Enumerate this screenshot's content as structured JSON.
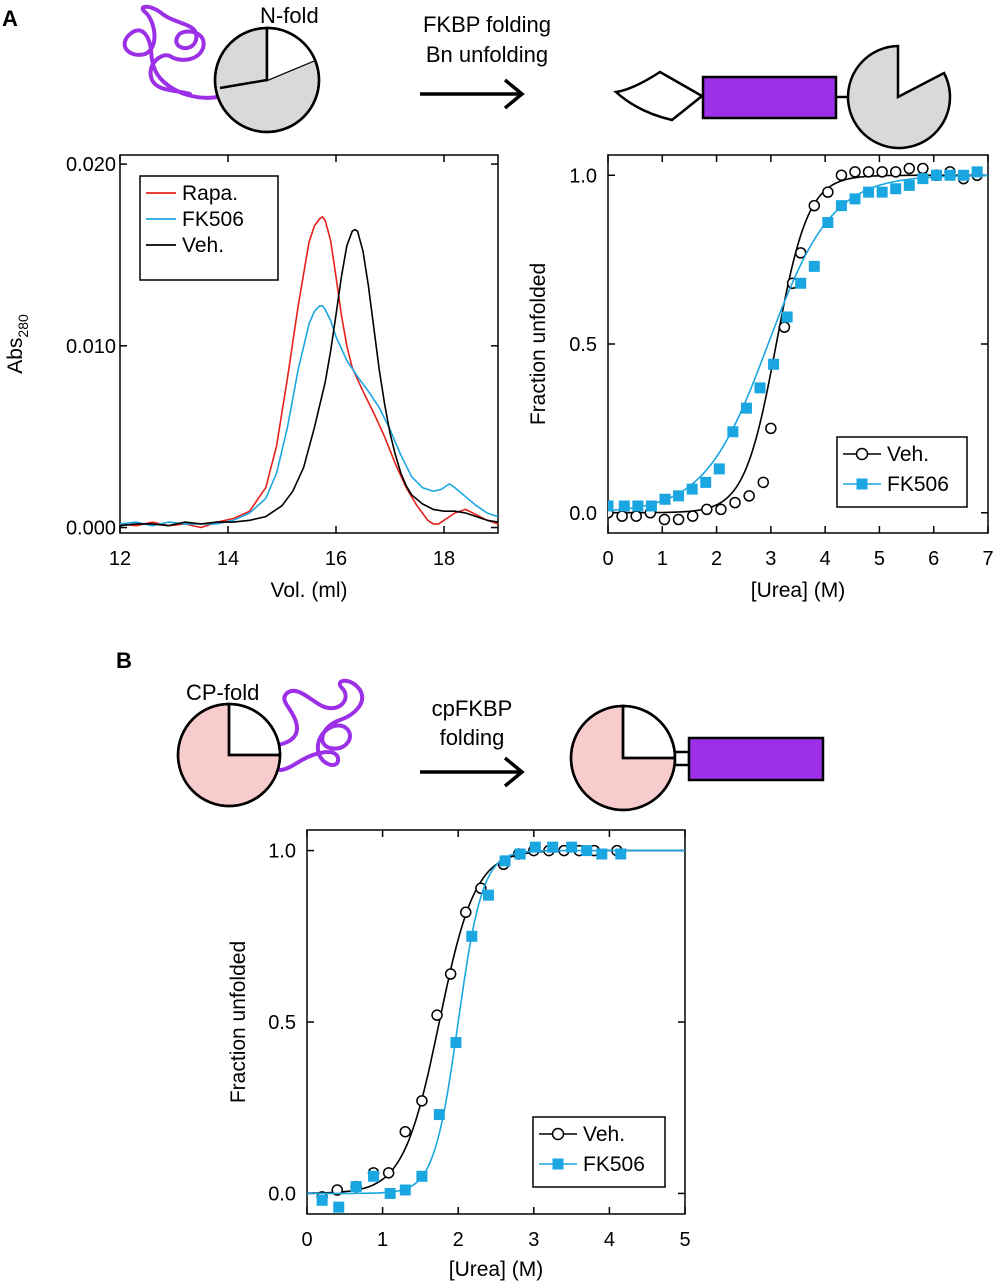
{
  "panel_labels": {
    "a": "A",
    "b": "B"
  },
  "schematic_a": {
    "domain_label": "N-fold",
    "arrow_line1": "FKBP folding",
    "arrow_line2": "Bn unfolding"
  },
  "schematic_b": {
    "domain_label": "CP-fold",
    "arrow_line1": "cpFKBP",
    "arrow_line2": "folding"
  },
  "colors": {
    "red": "#e8201c",
    "cyan": "#1aa6e0",
    "black": "#000000",
    "purple": "#9b30e6",
    "gray": "#d9d9d9",
    "pink": "#f8cccc"
  },
  "chart_data": [
    {
      "type": "line",
      "title": "",
      "xlabel": "Vol. (ml)",
      "ylabel_main": "Abs",
      "ylabel_sub": "280",
      "xlim": [
        12,
        19
      ],
      "ylim": [
        -0.0003,
        0.0205
      ],
      "xticks": [
        12,
        14,
        16,
        18
      ],
      "xtick_labels": [
        "12",
        "14",
        "16",
        "18"
      ],
      "yticks": [
        0.0,
        0.01,
        0.02
      ],
      "ytick_labels": [
        "0.000",
        "0.010",
        "0.020"
      ],
      "legend_position": "top-left",
      "series": [
        {
          "name": "Rapa.",
          "color": "#e8201c",
          "x": [
            12.0,
            12.3,
            12.6,
            12.9,
            13.2,
            13.5,
            13.8,
            14.1,
            14.4,
            14.7,
            14.9,
            15.1,
            15.3,
            15.5,
            15.6,
            15.7,
            15.75,
            15.8,
            15.9,
            16.0,
            16.1,
            16.2,
            16.3,
            16.5,
            16.7,
            16.9,
            17.1,
            17.3,
            17.5,
            17.7,
            17.8,
            17.9,
            18.0,
            18.2,
            18.4,
            18.6,
            18.8,
            19.0
          ],
          "y": [
            0.0002,
            0.0001,
            0.0003,
            0.0001,
            0.0002,
            0.0,
            0.0003,
            0.0005,
            0.0009,
            0.0022,
            0.0045,
            0.0082,
            0.0122,
            0.0157,
            0.0166,
            0.017,
            0.0171,
            0.0169,
            0.0158,
            0.0138,
            0.0117,
            0.01,
            0.0088,
            0.0075,
            0.0063,
            0.005,
            0.0035,
            0.0022,
            0.0012,
            0.0004,
            0.0002,
            0.0002,
            0.0004,
            0.0008,
            0.001,
            0.0007,
            0.0004,
            0.0002
          ]
        },
        {
          "name": "FK506",
          "color": "#1aa6e0",
          "x": [
            12.0,
            12.3,
            12.6,
            12.9,
            13.2,
            13.5,
            13.8,
            14.1,
            14.4,
            14.7,
            14.9,
            15.1,
            15.3,
            15.5,
            15.6,
            15.7,
            15.75,
            15.8,
            15.9,
            16.0,
            16.2,
            16.4,
            16.6,
            16.8,
            17.0,
            17.2,
            17.4,
            17.6,
            17.8,
            17.95,
            18.1,
            18.2,
            18.4,
            18.6,
            18.8,
            19.0
          ],
          "y": [
            0.0002,
            0.0003,
            0.0001,
            0.0003,
            0.0002,
            0.0002,
            0.0002,
            0.0004,
            0.0008,
            0.0016,
            0.003,
            0.0055,
            0.0087,
            0.0112,
            0.0119,
            0.0122,
            0.0122,
            0.012,
            0.0114,
            0.0105,
            0.0092,
            0.0083,
            0.0075,
            0.0066,
            0.0054,
            0.004,
            0.0028,
            0.0022,
            0.002,
            0.0021,
            0.0024,
            0.0022,
            0.0017,
            0.0012,
            0.0008,
            0.0006
          ]
        },
        {
          "name": "Veh.",
          "color": "#000000",
          "x": [
            12.0,
            12.3,
            12.6,
            12.9,
            13.2,
            13.5,
            13.8,
            14.1,
            14.4,
            14.7,
            15.0,
            15.2,
            15.4,
            15.6,
            15.8,
            15.9,
            16.0,
            16.1,
            16.2,
            16.3,
            16.35,
            16.4,
            16.5,
            16.6,
            16.7,
            16.8,
            16.9,
            17.0,
            17.1,
            17.2,
            17.3,
            17.4,
            17.6,
            17.8,
            18.0,
            18.2,
            18.4,
            18.6,
            18.8,
            19.0
          ],
          "y": [
            0.0001,
            0.0002,
            0.0002,
            0.0001,
            0.0003,
            0.0002,
            0.0003,
            0.0003,
            0.0004,
            0.0006,
            0.0012,
            0.002,
            0.0033,
            0.0055,
            0.008,
            0.0097,
            0.0117,
            0.0138,
            0.0155,
            0.0163,
            0.0164,
            0.0163,
            0.0152,
            0.0133,
            0.011,
            0.0087,
            0.0068,
            0.0052,
            0.004,
            0.003,
            0.0023,
            0.0018,
            0.0013,
            0.001,
            0.0009,
            0.0009,
            0.0008,
            0.0006,
            0.0004,
            0.0003
          ]
        }
      ]
    },
    {
      "type": "scatter",
      "title": "",
      "xlabel": "[Urea] (M)",
      "ylabel": "Fraction unfolded",
      "xlim": [
        0,
        7
      ],
      "ylim": [
        -0.06,
        1.06
      ],
      "xticks": [
        0,
        1,
        2,
        3,
        4,
        5,
        6,
        7
      ],
      "xtick_labels": [
        "0",
        "1",
        "2",
        "3",
        "4",
        "5",
        "6",
        "7"
      ],
      "yticks": [
        0.0,
        0.5,
        1.0
      ],
      "ytick_labels": [
        "0.0",
        "0.5",
        "1.0"
      ],
      "legend_position": "bottom-right",
      "series": [
        {
          "name": "Veh.",
          "color": "#000000",
          "marker": "open-circle",
          "fit": {
            "midpoint": 3.1,
            "m": 3.4
          },
          "x": [
            0.0,
            0.26,
            0.52,
            0.78,
            1.04,
            1.3,
            1.56,
            1.82,
            2.08,
            2.34,
            2.6,
            2.86,
            3.0,
            3.25,
            3.4,
            3.55,
            3.8,
            4.05,
            4.3,
            4.55,
            4.8,
            5.05,
            5.3,
            5.55,
            5.8,
            6.05,
            6.3,
            6.55,
            6.8
          ],
          "y": [
            0.0,
            -0.01,
            -0.01,
            0.0,
            -0.02,
            -0.02,
            -0.01,
            0.01,
            0.01,
            0.03,
            0.05,
            0.09,
            0.25,
            0.55,
            0.68,
            0.77,
            0.91,
            0.95,
            1.0,
            1.01,
            1.01,
            1.01,
            1.01,
            1.02,
            1.02,
            1.0,
            1.01,
            0.99,
            1.0
          ]
        },
        {
          "name": "FK506",
          "color": "#1aa6e0",
          "marker": "filled-square",
          "fit": {
            "midpoint": 2.95,
            "m": 1.7
          },
          "x": [
            0.0,
            0.3,
            0.55,
            0.8,
            1.05,
            1.3,
            1.55,
            1.8,
            2.05,
            2.3,
            2.55,
            2.8,
            3.05,
            3.3,
            3.55,
            3.8,
            4.05,
            4.3,
            4.55,
            4.8,
            5.05,
            5.3,
            5.55,
            5.8,
            6.05,
            6.3,
            6.55,
            6.8
          ],
          "y": [
            0.02,
            0.02,
            0.02,
            0.02,
            0.04,
            0.05,
            0.07,
            0.09,
            0.13,
            0.24,
            0.31,
            0.37,
            0.44,
            0.58,
            0.68,
            0.73,
            0.86,
            0.91,
            0.93,
            0.95,
            0.95,
            0.96,
            0.97,
            0.99,
            1.0,
            1.0,
            1.0,
            1.01
          ]
        }
      ]
    },
    {
      "type": "scatter",
      "title": "",
      "xlabel": "[Urea] (M)",
      "ylabel": "Fraction unfolded",
      "xlim": [
        0,
        5
      ],
      "ylim": [
        -0.06,
        1.06
      ],
      "xticks": [
        0,
        1,
        2,
        3,
        4,
        5
      ],
      "xtick_labels": [
        "0",
        "1",
        "2",
        "3",
        "4",
        "5"
      ],
      "yticks": [
        0.0,
        0.5,
        1.0
      ],
      "ytick_labels": [
        "0.0",
        "0.5",
        "1.0"
      ],
      "legend_position": "bottom-right",
      "series": [
        {
          "name": "Veh.",
          "color": "#000000",
          "marker": "open-circle",
          "fit": {
            "midpoint": 1.75,
            "m": 4.2
          },
          "x": [
            0.2,
            0.4,
            0.65,
            0.88,
            1.08,
            1.3,
            1.52,
            1.72,
            1.9,
            2.1,
            2.3,
            2.6,
            2.8,
            3.0,
            3.2,
            3.4,
            3.6,
            3.8,
            4.1
          ],
          "y": [
            -0.01,
            0.01,
            0.02,
            0.06,
            0.06,
            0.18,
            0.27,
            0.52,
            0.64,
            0.82,
            0.89,
            0.96,
            0.99,
            1.0,
            1.0,
            1.0,
            1.0,
            1.0,
            1.0
          ]
        },
        {
          "name": "FK506",
          "color": "#1aa6e0",
          "marker": "filled-square",
          "fit": {
            "midpoint": 2.0,
            "m": 6.2
          },
          "x": [
            0.2,
            0.42,
            0.65,
            0.88,
            1.1,
            1.3,
            1.52,
            1.75,
            1.97,
            2.18,
            2.4,
            2.62,
            2.82,
            3.02,
            3.25,
            3.5,
            3.7,
            3.9,
            4.15
          ],
          "y": [
            -0.02,
            -0.04,
            0.02,
            0.05,
            0.0,
            0.01,
            0.05,
            0.23,
            0.44,
            0.75,
            0.87,
            0.97,
            0.99,
            1.01,
            1.01,
            1.01,
            1.0,
            0.99,
            0.99
          ]
        }
      ]
    }
  ]
}
